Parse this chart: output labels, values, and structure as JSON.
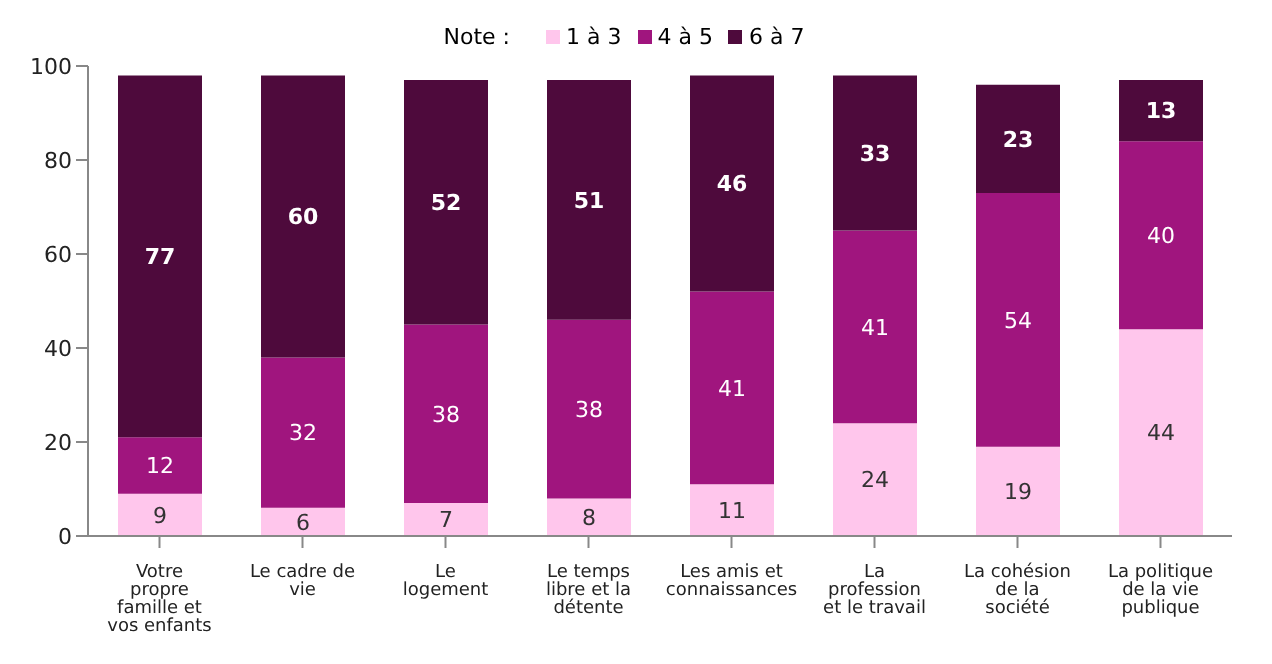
{
  "chart_data": {
    "type": "bar",
    "stacked": true,
    "legend_title": "Note :",
    "legend": "top",
    "data_labels": true,
    "categories": [
      "Votre propre famille et vos enfants",
      "Le cadre de vie",
      "Le logement",
      "Le temps libre et la détente",
      "Les amis et connaissances",
      "La profession et le travail",
      "La cohésion de la société",
      "La politique de la vie publique"
    ],
    "series": [
      {
        "name": "1 à 3",
        "color": "#ffc6ec",
        "values": [
          9,
          6,
          7,
          8,
          11,
          24,
          19,
          44
        ]
      },
      {
        "name": "4 à 5",
        "color": "#a0157e",
        "values": [
          12,
          32,
          38,
          38,
          41,
          41,
          54,
          40
        ]
      },
      {
        "name": "6 à 7",
        "color": "#4e0a3c",
        "values": [
          77,
          60,
          52,
          51,
          46,
          33,
          23,
          13
        ]
      }
    ],
    "ylim": [
      0,
      100
    ],
    "yticks": [
      0,
      20,
      40,
      60,
      80,
      100
    ],
    "grid": false
  }
}
